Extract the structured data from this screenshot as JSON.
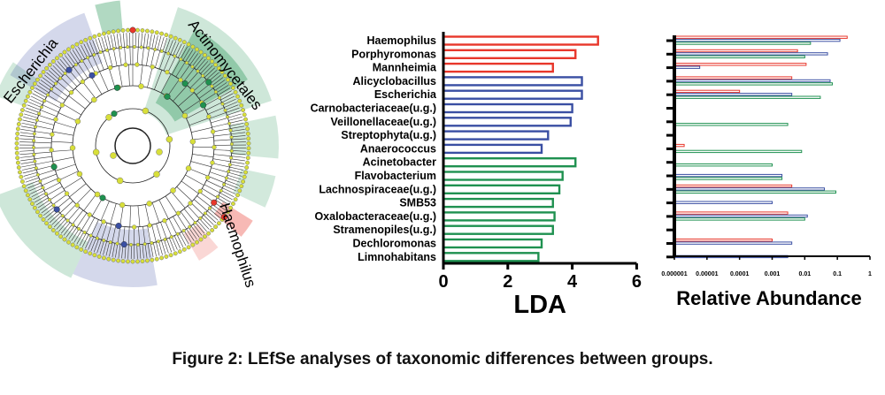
{
  "caption": "Figure 2: LEfSe analyses of taxonomic differences between groups.",
  "colors": {
    "red": "#e8372b",
    "blue": "#3a4fa3",
    "green": "#1f9150",
    "node": "#d8df3a"
  },
  "cladogram": {
    "labels": [
      {
        "text": "Escherichia",
        "group": "blue"
      },
      {
        "text": "Actinomycetales",
        "group": "green"
      },
      {
        "text": "Haemophilus",
        "group": "red"
      }
    ]
  },
  "chart_data": [
    {
      "type": "bar",
      "orientation": "horizontal",
      "xlabel": "LDA",
      "xlim": [
        0,
        6
      ],
      "xticks": [
        0,
        2,
        4,
        6
      ],
      "categories": [
        "Haemophilus",
        "Porphyromonas",
        "Mannheimia",
        "Alicyclobacillus",
        "Escherichia",
        "Carnobacteriaceae(u.g.)",
        "Veillonellaceae(u.g.)",
        "Streptophyta(u.g.)",
        "Anaerococcus",
        "Acinetobacter",
        "Flavobacterium",
        "Lachnospiraceae(u.g.)",
        "SMB53",
        "Oxalobacteraceae(u.g.)",
        "Stramenopiles(u.g.)",
        "Dechloromonas",
        "Limnohabitans"
      ],
      "values": [
        4.8,
        4.1,
        3.4,
        4.3,
        4.3,
        4.0,
        3.95,
        3.25,
        3.05,
        4.1,
        3.7,
        3.6,
        3.4,
        3.45,
        3.4,
        3.05,
        2.95
      ],
      "groups": [
        "red",
        "red",
        "red",
        "blue",
        "blue",
        "blue",
        "blue",
        "blue",
        "blue",
        "green",
        "green",
        "green",
        "green",
        "green",
        "green",
        "green",
        "green"
      ]
    },
    {
      "type": "bar",
      "orientation": "horizontal",
      "xlabel": "Relative Abundance",
      "xscale": "log",
      "xlim": [
        1e-06,
        1
      ],
      "xticks": [
        "0.000001",
        "0.00001",
        "0.0001",
        "0.001",
        "0.01",
        "0.1",
        "1"
      ],
      "series_colors": [
        "red",
        "blue",
        "green"
      ],
      "values": [
        [
          0.2,
          0.12,
          0.015
        ],
        [
          0.006,
          0.05,
          0.01
        ],
        [
          0.011,
          6e-06,
          1e-06
        ],
        [
          0.004,
          0.06,
          0.07
        ],
        [
          0.0001,
          0.004,
          0.03
        ],
        [
          1e-06,
          1e-06,
          1e-06
        ],
        [
          1e-06,
          1e-06,
          0.003
        ],
        [
          1e-06,
          1e-06,
          1e-06
        ],
        [
          2e-06,
          1e-06,
          0.008
        ],
        [
          1e-06,
          1e-06,
          0.001
        ],
        [
          1e-06,
          0.002,
          0.002
        ],
        [
          0.004,
          0.04,
          0.09
        ],
        [
          1e-06,
          0.001,
          1e-06
        ],
        [
          0.003,
          0.012,
          0.01
        ],
        [
          1e-06,
          1e-06,
          1e-06
        ],
        [
          0.001,
          0.004,
          1e-06
        ],
        [
          1e-06,
          0.003,
          1e-06
        ]
      ]
    }
  ]
}
